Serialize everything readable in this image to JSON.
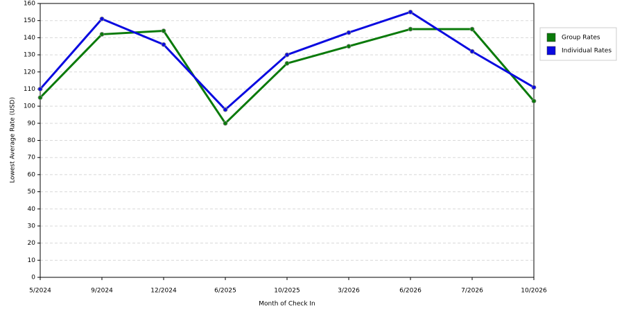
{
  "chart_data": {
    "type": "line",
    "x_label": "Month of Check In",
    "y_label": "Lowest Average Rate (USD)",
    "categories": [
      "5/2024",
      "9/2024",
      "12/2024",
      "6/2025",
      "10/2025",
      "3/2026",
      "6/2026",
      "7/2026",
      "10/2026"
    ],
    "series": [
      {
        "name": "Group Rates",
        "color": "#0a7a0a",
        "values": [
          105,
          142,
          144,
          90,
          125,
          135,
          145,
          145,
          103
        ]
      },
      {
        "name": "Individual Rates",
        "color": "#0a0ae0",
        "values": [
          110,
          151,
          136,
          98,
          130,
          143,
          155,
          132,
          111
        ]
      }
    ],
    "ylim": [
      0,
      160
    ],
    "yticks": [
      0,
      10,
      20,
      30,
      40,
      50,
      60,
      70,
      80,
      90,
      100,
      110,
      120,
      130,
      140,
      150,
      160
    ],
    "grid": true,
    "legend": "right"
  }
}
